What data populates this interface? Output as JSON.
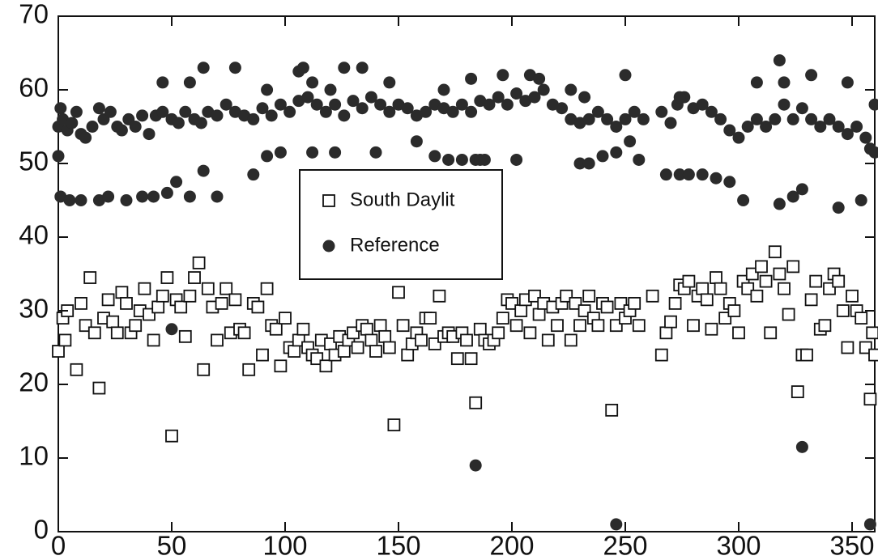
{
  "chart_data": {
    "type": "scatter",
    "xlim": [
      0,
      360
    ],
    "ylim": [
      0,
      70
    ],
    "xticks": [
      0,
      50,
      100,
      150,
      200,
      250,
      300,
      350
    ],
    "yticks": [
      0,
      10,
      20,
      30,
      40,
      50,
      60,
      70
    ],
    "grid": false,
    "legend": "center",
    "series": [
      {
        "name": "South Daylit",
        "marker": "square",
        "color": "#111111",
        "x": [
          0,
          2,
          3,
          4,
          8,
          10,
          12,
          14,
          16,
          18,
          20,
          22,
          24,
          26,
          28,
          30,
          32,
          34,
          36,
          38,
          40,
          42,
          44,
          46,
          48,
          50,
          52,
          54,
          56,
          58,
          60,
          62,
          64,
          66,
          68,
          70,
          72,
          74,
          76,
          78,
          80,
          82,
          84,
          86,
          88,
          90,
          92,
          94,
          96,
          98,
          100,
          102,
          104,
          106,
          108,
          110,
          112,
          114,
          116,
          118,
          120,
          122,
          124,
          126,
          128,
          130,
          132,
          134,
          136,
          138,
          140,
          142,
          144,
          146,
          148,
          150,
          152,
          154,
          156,
          158,
          160,
          162,
          164,
          166,
          168,
          170,
          172,
          174,
          176,
          178,
          180,
          182,
          184,
          186,
          188,
          190,
          192,
          194,
          196,
          198,
          200,
          202,
          204,
          206,
          208,
          210,
          212,
          214,
          216,
          218,
          220,
          222,
          224,
          226,
          228,
          230,
          232,
          234,
          236,
          238,
          240,
          242,
          244,
          246,
          248,
          250,
          252,
          254,
          256,
          262,
          266,
          268,
          270,
          272,
          274,
          276,
          278,
          280,
          282,
          284,
          286,
          288,
          290,
          292,
          294,
          296,
          298,
          300,
          302,
          304,
          306,
          308,
          310,
          312,
          314,
          316,
          318,
          320,
          322,
          324,
          326,
          328,
          330,
          332,
          334,
          336,
          338,
          340,
          342,
          344,
          346,
          348,
          350,
          352,
          354,
          356,
          358,
          359,
          360
        ],
        "values": [
          24.5,
          29,
          26,
          30,
          22,
          31,
          28,
          34.5,
          27,
          19.5,
          29,
          31.5,
          28.5,
          27,
          32.5,
          31,
          27,
          28,
          30,
          33,
          29.5,
          26,
          30.5,
          32,
          34.5,
          13,
          31.5,
          30.5,
          26.5,
          32,
          34.5,
          36.5,
          22,
          33,
          30.5,
          26,
          31,
          33,
          27,
          31.5,
          27.5,
          27,
          22,
          31,
          30.5,
          24,
          33,
          28,
          27.5,
          22.5,
          29,
          25,
          24.5,
          26,
          27.5,
          25,
          24,
          23.5,
          26,
          22.5,
          25.5,
          24,
          26.5,
          24.5,
          26,
          27,
          25,
          28,
          27.5,
          26,
          24.5,
          28,
          26.5,
          25,
          14.5,
          32.5,
          28,
          24,
          25.5,
          27,
          26,
          29,
          29,
          25.5,
          32,
          26.5,
          27,
          26.5,
          23.5,
          27,
          26,
          23.5,
          17.5,
          27.5,
          26,
          25.5,
          26,
          27,
          29,
          31.5,
          31,
          28,
          30,
          31.5,
          27,
          32,
          29.5,
          31,
          26,
          30.5,
          28,
          31,
          32,
          26,
          31,
          28,
          30,
          32,
          29,
          28,
          31,
          30.5,
          16.5,
          28,
          31,
          29,
          30,
          31,
          28,
          32,
          24,
          27,
          28.5,
          31,
          33.5,
          33,
          34,
          28,
          32,
          33,
          31.5,
          27.5,
          34.5,
          33,
          29,
          31,
          30,
          27,
          34,
          33,
          35,
          32,
          36,
          34,
          27,
          38,
          35,
          33,
          29.5,
          36,
          19,
          24,
          24,
          31.5,
          34,
          27.5,
          28,
          33,
          35,
          34,
          30,
          25,
          32,
          30,
          29,
          25,
          18,
          27,
          24
        ]
      },
      {
        "name": "Reference",
        "marker": "circle",
        "color": "#2b2b2b",
        "x": [
          0,
          1,
          2,
          4,
          6,
          8,
          10,
          12,
          15,
          18,
          20,
          23,
          26,
          28,
          31,
          34,
          37,
          40,
          43,
          46,
          50,
          53,
          56,
          60,
          63,
          66,
          70,
          74,
          78,
          82,
          86,
          90,
          94,
          98,
          102,
          106,
          110,
          114,
          118,
          122,
          126,
          130,
          134,
          138,
          142,
          146,
          150,
          154,
          158,
          162,
          166,
          170,
          174,
          178,
          182,
          186,
          190,
          194,
          198,
          202,
          206,
          210,
          214,
          218,
          222,
          226,
          230,
          234,
          238,
          242,
          246,
          250,
          254,
          258,
          266,
          270,
          273,
          276,
          280,
          284,
          288,
          292,
          296,
          300,
          304,
          308,
          312,
          316,
          320,
          324,
          328,
          332,
          336,
          340,
          344,
          348,
          352,
          356,
          360,
          46,
          58,
          64,
          78,
          92,
          106,
          108,
          112,
          120,
          126,
          134,
          146,
          170,
          182,
          196,
          208,
          212,
          226,
          232,
          250,
          274,
          308,
          318,
          320,
          332,
          348,
          0,
          1,
          5,
          10,
          18,
          22,
          30,
          37,
          42,
          48,
          52,
          58,
          64,
          70,
          86,
          92,
          98,
          112,
          122,
          140,
          158,
          166,
          172,
          178,
          184,
          186,
          188,
          202,
          230,
          234,
          240,
          246,
          252,
          256,
          268,
          274,
          278,
          284,
          290,
          296,
          302,
          318,
          324,
          328,
          344,
          354,
          358,
          360,
          50,
          184,
          246,
          328,
          358
        ],
        "values": [
          55,
          57.5,
          56,
          54.5,
          55.5,
          57,
          54,
          53.5,
          55,
          57.5,
          56,
          57,
          55,
          54.5,
          56,
          55,
          56.5,
          54,
          56.5,
          57,
          56,
          55.5,
          57,
          56,
          55.5,
          57,
          56.5,
          58,
          57,
          56.5,
          56,
          57.5,
          56.5,
          58,
          57,
          58.5,
          59,
          58,
          57,
          58,
          56.5,
          58.5,
          57.5,
          59,
          58,
          57,
          58,
          57.5,
          56.5,
          57,
          58,
          57.5,
          57,
          58,
          57,
          58.5,
          58,
          59,
          58,
          59.5,
          58.5,
          59,
          60,
          58,
          57.5,
          56,
          55.5,
          56,
          57,
          56,
          55,
          56,
          57,
          56,
          57,
          55.5,
          58,
          59,
          57.5,
          58,
          57,
          56,
          54.5,
          53.5,
          55,
          56,
          55,
          56,
          58,
          56,
          57.5,
          56,
          55,
          56,
          55,
          54,
          55,
          53.5,
          58,
          61,
          61,
          63,
          63,
          60,
          62.5,
          63,
          61,
          60,
          63,
          63,
          61,
          60,
          61.5,
          62,
          62,
          61.5,
          60,
          59,
          62,
          59,
          61,
          64,
          61,
          62,
          61,
          51,
          45.5,
          45,
          45,
          45,
          45.5,
          45,
          45.5,
          45.5,
          46,
          47.5,
          45.5,
          49,
          45.5,
          48.5,
          51,
          51.5,
          51.5,
          51.5,
          51.5,
          53,
          51,
          50.5,
          50.5,
          50.5,
          50.5,
          50.5,
          50.5,
          50,
          50,
          51,
          51.5,
          53,
          50.5,
          48.5,
          48.5,
          48.5,
          48.5,
          48,
          47.5,
          45,
          44.5,
          45.5,
          46.5,
          44,
          45,
          52,
          51.5,
          27.5,
          9,
          1,
          11.5,
          1
        ]
      }
    ]
  }
}
